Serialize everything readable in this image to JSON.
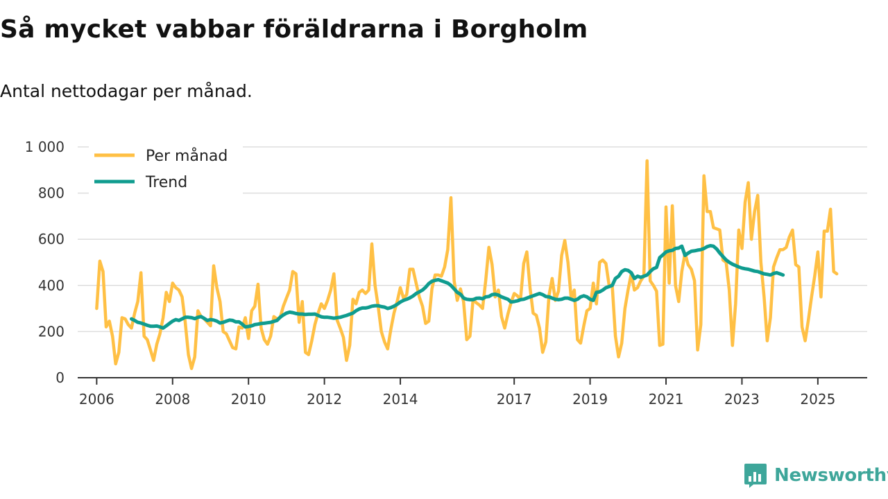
{
  "title": "Så mycket vabbar föräldrarna i Borgholm",
  "subtitle": "Antal nettodagar per månad.",
  "brand": {
    "name": "Newsworthy"
  },
  "colors": {
    "per_month": "#ffc045",
    "trend": "#0f9c8f",
    "grid": "#dddddd",
    "axis": "#333333",
    "brand": "#3ea69a"
  },
  "chart_data": {
    "type": "line",
    "title": "Så mycket vabbar föräldrarna i Borgholm",
    "subtitle": "Antal nettodagar per månad.",
    "xlabel": "",
    "ylabel": "",
    "xlim": [
      2005.5,
      2026.3
    ],
    "ylim": [
      0,
      1000
    ],
    "yticks": [
      0,
      200,
      400,
      600,
      800,
      1000
    ],
    "ytick_labels": [
      "0",
      "200",
      "400",
      "600",
      "800",
      "1 000"
    ],
    "xticks": [
      2006,
      2008,
      2010,
      2012,
      2014,
      2017,
      2019,
      2021,
      2023,
      2025
    ],
    "xtick_labels": [
      "2006",
      "2008",
      "2010",
      "2012",
      "2014",
      "2017",
      "2019",
      "2021",
      "2023",
      "2025"
    ],
    "grid": "horizontal",
    "legend_position": "top-left",
    "series": [
      {
        "name": "Per månad",
        "color": "#ffc045",
        "start": 2006.0,
        "step_months": 1,
        "values": [
          300,
          505,
          460,
          220,
          245,
          180,
          60,
          110,
          260,
          255,
          230,
          215,
          280,
          330,
          455,
          180,
          165,
          120,
          75,
          145,
          190,
          260,
          370,
          330,
          410,
          390,
          380,
          350,
          240,
          100,
          40,
          90,
          290,
          265,
          255,
          240,
          225,
          485,
          390,
          330,
          200,
          190,
          160,
          130,
          125,
          220,
          215,
          260,
          170,
          290,
          310,
          405,
          215,
          165,
          145,
          180,
          265,
          255,
          260,
          310,
          345,
          380,
          460,
          450,
          240,
          330,
          110,
          100,
          160,
          230,
          280,
          320,
          300,
          335,
          380,
          450,
          250,
          215,
          175,
          75,
          140,
          340,
          320,
          370,
          380,
          365,
          380,
          580,
          400,
          310,
          200,
          155,
          125,
          210,
          280,
          330,
          390,
          345,
          360,
          470,
          470,
          410,
          350,
          310,
          235,
          245,
          385,
          445,
          445,
          440,
          480,
          555,
          780,
          420,
          335,
          385,
          330,
          165,
          180,
          340,
          325,
          315,
          300,
          420,
          565,
          490,
          350,
          380,
          265,
          215,
          275,
          325,
          365,
          355,
          340,
          495,
          545,
          390,
          280,
          270,
          215,
          110,
          155,
          355,
          430,
          335,
          375,
          530,
          595,
          500,
          345,
          380,
          165,
          150,
          225,
          290,
          300,
          410,
          320,
          500,
          510,
          495,
          400,
          400,
          180,
          90,
          150,
          300,
          380,
          450,
          380,
          390,
          420,
          440,
          940,
          420,
          400,
          375,
          140,
          145,
          740,
          410,
          745,
          400,
          330,
          460,
          540,
          490,
          470,
          420,
          120,
          230,
          875,
          720,
          720,
          650,
          645,
          640,
          510,
          500,
          380,
          140,
          320,
          640,
          560,
          760,
          845,
          600,
          720,
          790,
          500,
          350,
          160,
          260,
          480,
          520,
          555,
          555,
          565,
          610,
          640,
          490,
          480,
          220,
          160,
          250,
          350,
          440,
          545,
          350,
          635,
          635,
          730,
          460,
          450
        ]
      },
      {
        "name": "Trend",
        "color": "#0f9c8f",
        "start": 2006.917,
        "step_months": 1,
        "values": [
          255,
          248,
          240,
          237,
          232,
          227,
          223,
          223,
          224,
          220,
          215,
          225,
          235,
          245,
          252,
          248,
          255,
          262,
          262,
          260,
          256,
          262,
          265,
          257,
          248,
          252,
          250,
          245,
          237,
          240,
          245,
          250,
          248,
          242,
          242,
          232,
          220,
          222,
          225,
          230,
          232,
          235,
          236,
          238,
          240,
          244,
          248,
          262,
          272,
          280,
          284,
          282,
          278,
          276,
          276,
          274,
          275,
          275,
          276,
          270,
          264,
          262,
          262,
          260,
          258,
          260,
          262,
          266,
          270,
          275,
          280,
          290,
          298,
          302,
          302,
          305,
          310,
          312,
          312,
          308,
          306,
          300,
          304,
          310,
          318,
          328,
          335,
          340,
          346,
          354,
          365,
          372,
          380,
          392,
          408,
          418,
          422,
          425,
          420,
          415,
          410,
          400,
          385,
          370,
          362,
          345,
          340,
          338,
          338,
          344,
          345,
          342,
          350,
          352,
          360,
          362,
          358,
          350,
          345,
          340,
          328,
          330,
          333,
          338,
          340,
          345,
          350,
          355,
          360,
          365,
          360,
          352,
          350,
          345,
          340,
          338,
          340,
          345,
          345,
          340,
          335,
          340,
          350,
          355,
          350,
          340,
          335,
          370,
          372,
          380,
          390,
          395,
          400,
          430,
          440,
          460,
          468,
          465,
          455,
          430,
          440,
          435,
          440,
          445,
          460,
          472,
          478,
          520,
          532,
          545,
          550,
          552,
          560,
          562,
          570,
          530,
          540,
          548,
          550,
          553,
          555,
          560,
          568,
          572,
          570,
          558,
          540,
          525,
          510,
          500,
          492,
          486,
          480,
          475,
          472,
          470,
          466,
          462,
          460,
          455,
          450,
          448,
          445,
          452,
          455,
          450,
          445
        ]
      }
    ]
  }
}
